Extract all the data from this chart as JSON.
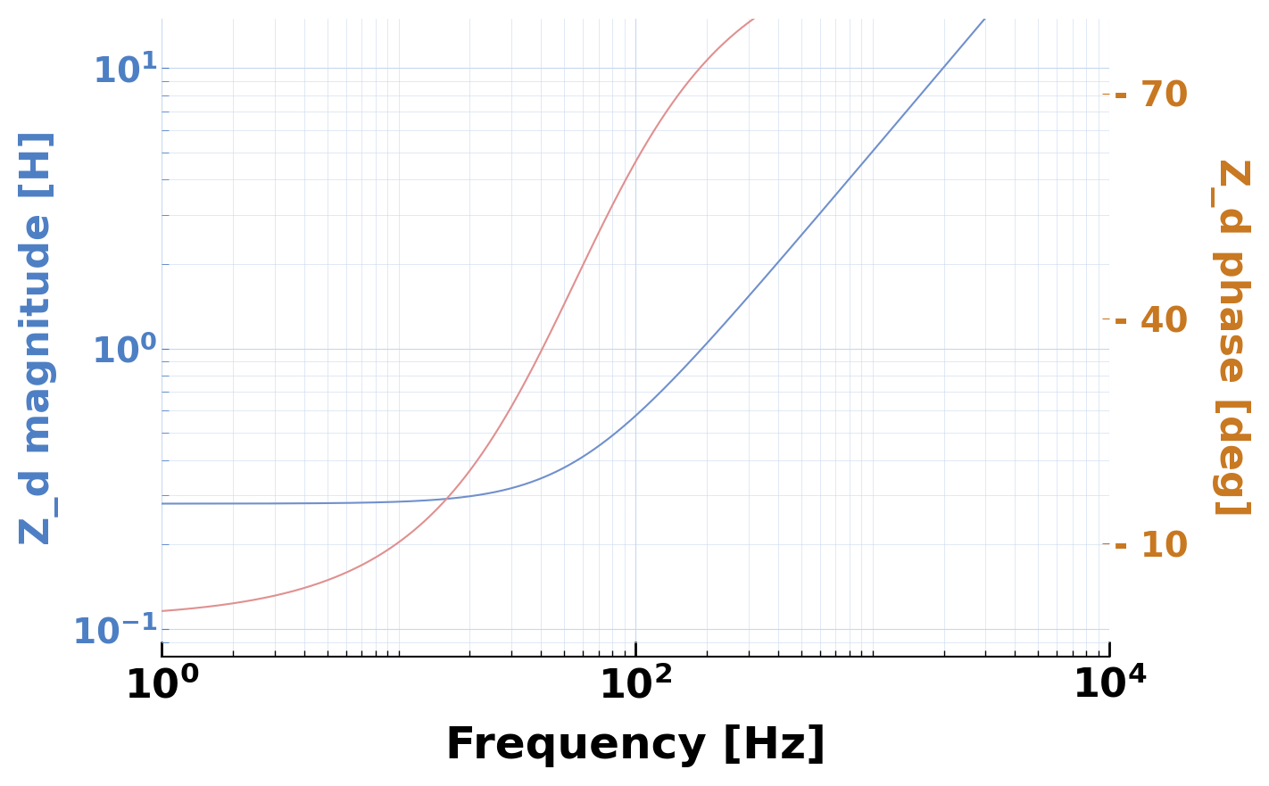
{
  "freq_min": 1,
  "freq_max": 10000,
  "mag_ylim": [
    0.08,
    15
  ],
  "phase_ylim": [
    -5,
    80
  ],
  "phase_yticks": [
    10,
    40,
    70
  ],
  "phase_ytick_labels": [
    "- 10",
    "- 40",
    "- 70"
  ],
  "mag_yticks": [
    0.1,
    1.0,
    10.0
  ],
  "mag_color": "#7090cc",
  "phase_color": "#e09090",
  "left_label": "Z_d magnitude [H]",
  "right_label": "Z_d phase [deg]",
  "xlabel": "Frequency [Hz]",
  "left_label_color": "#4d7fc4",
  "right_label_color": "#c87820",
  "right_tick_color": "#c87820",
  "background_color": "#ffffff",
  "grid_color": "#c8d8ee",
  "R": 0.28,
  "L": 0.0008,
  "figwidth": 14.22,
  "figheight": 8.81,
  "dpi": 100
}
